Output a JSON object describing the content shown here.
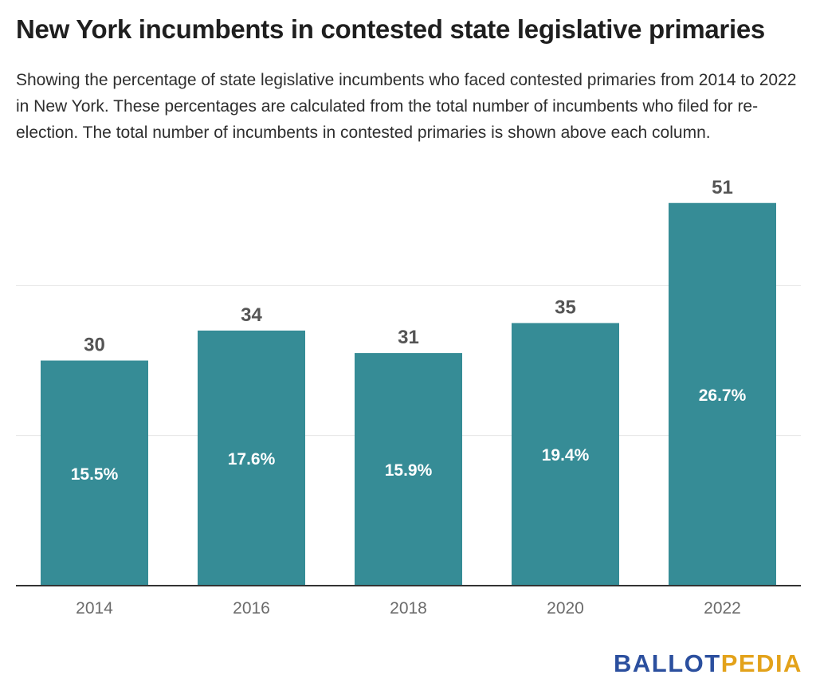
{
  "title": "New York incumbents in contested state legislative primaries",
  "subtitle": "Showing the percentage of state legislative incumbents who faced contested primaries from 2014 to 2022 in New York. These percentages are calculated from the total number of incumbents who filed for re-election. The total number of incumbents in contested primaries is shown above each column.",
  "logo": {
    "part1": "BALLOT",
    "part2": "PEDIA"
  },
  "colors": {
    "bar": "#368c96",
    "grid": "#e6e6e6",
    "axis": "#333333",
    "label_top": "#555555",
    "label_inside": "#ffffff",
    "tick": "#6b6b6b",
    "logo_blue": "#2b4f9e",
    "logo_gold": "#e3a21a"
  },
  "chart_data": {
    "type": "bar",
    "categories": [
      "2014",
      "2016",
      "2018",
      "2020",
      "2022"
    ],
    "values": [
      30,
      34,
      31,
      35,
      51
    ],
    "percent_labels": [
      "15.5%",
      "17.6%",
      "15.9%",
      "19.4%",
      "26.7%"
    ],
    "ylim": [
      0,
      60
    ],
    "gridlines": [
      20,
      40
    ],
    "grid": true,
    "legend": "none"
  }
}
